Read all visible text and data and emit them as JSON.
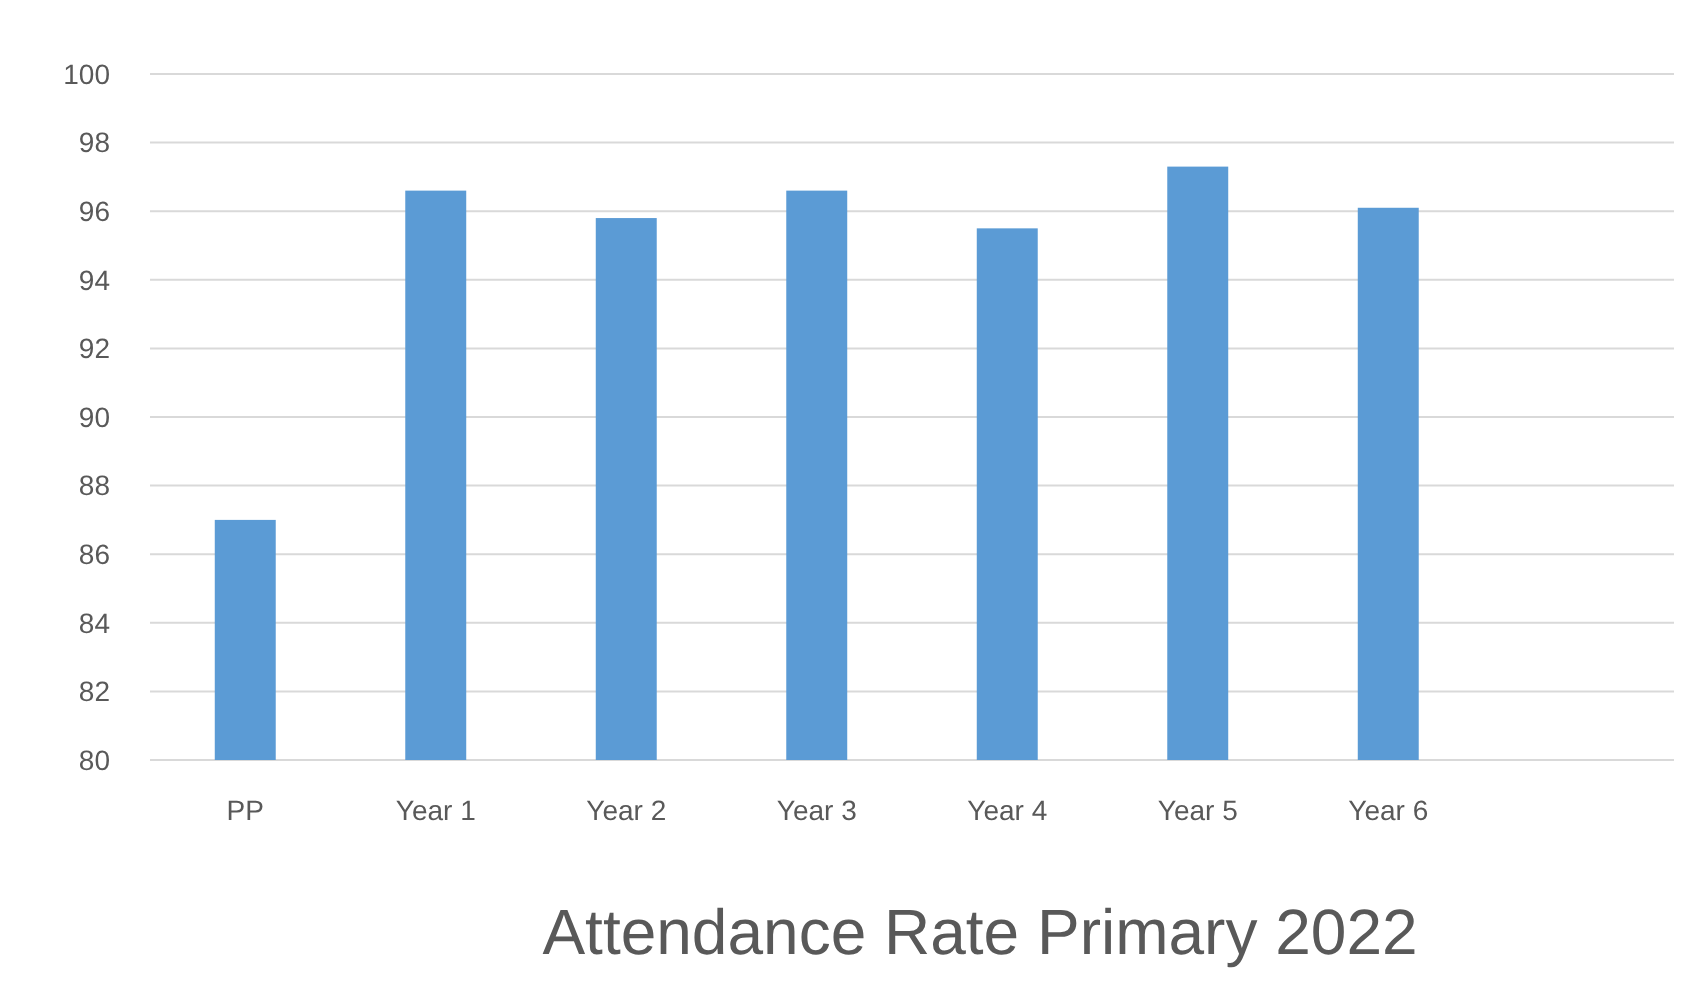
{
  "chart_data": {
    "type": "bar",
    "title": "Attendance Rate Primary 2022",
    "categories": [
      "PP",
      "Year 1",
      "Year 2",
      "Year 3",
      "Year 4",
      "Year 5",
      "Year 6",
      null
    ],
    "values": [
      87.0,
      96.6,
      95.8,
      96.6,
      95.5,
      97.3,
      96.1,
      null
    ],
    "color": "#5b9bd5",
    "ylim": [
      80,
      100
    ],
    "yticks": [
      80,
      82,
      84,
      86,
      88,
      90,
      92,
      94,
      96,
      98,
      100
    ],
    "grid": "y"
  }
}
